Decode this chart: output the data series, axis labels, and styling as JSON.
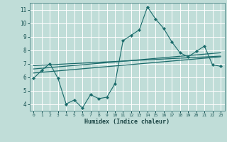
{
  "title": "",
  "xlabel": "Humidex (Indice chaleur)",
  "background_color": "#c0ddd8",
  "grid_color": "#ffffff",
  "line_color": "#1a6b6b",
  "xlim": [
    -0.5,
    23.5
  ],
  "ylim": [
    3.5,
    11.5
  ],
  "xticks": [
    0,
    1,
    2,
    3,
    4,
    5,
    6,
    7,
    8,
    9,
    10,
    11,
    12,
    13,
    14,
    15,
    16,
    17,
    18,
    19,
    20,
    21,
    22,
    23
  ],
  "yticks": [
    4,
    5,
    6,
    7,
    8,
    9,
    10,
    11
  ],
  "main_series": {
    "x": [
      0,
      1,
      2,
      3,
      4,
      5,
      6,
      7,
      8,
      9,
      10,
      11,
      12,
      13,
      14,
      15,
      16,
      17,
      18,
      19,
      20,
      21,
      22,
      23
    ],
    "y": [
      5.9,
      6.5,
      7.0,
      5.9,
      4.0,
      4.3,
      3.7,
      4.7,
      4.4,
      4.5,
      5.5,
      8.7,
      9.1,
      9.5,
      11.2,
      10.3,
      9.6,
      8.6,
      7.8,
      7.5,
      7.9,
      8.3,
      6.9,
      6.8
    ]
  },
  "smooth_lines": [
    {
      "x0": 0,
      "y0": 6.3,
      "x1": 23,
      "y1": 7.5
    },
    {
      "x0": 0,
      "y0": 6.6,
      "x1": 23,
      "y1": 7.8
    },
    {
      "x0": 0,
      "y0": 6.85,
      "x1": 23,
      "y1": 7.55
    }
  ]
}
